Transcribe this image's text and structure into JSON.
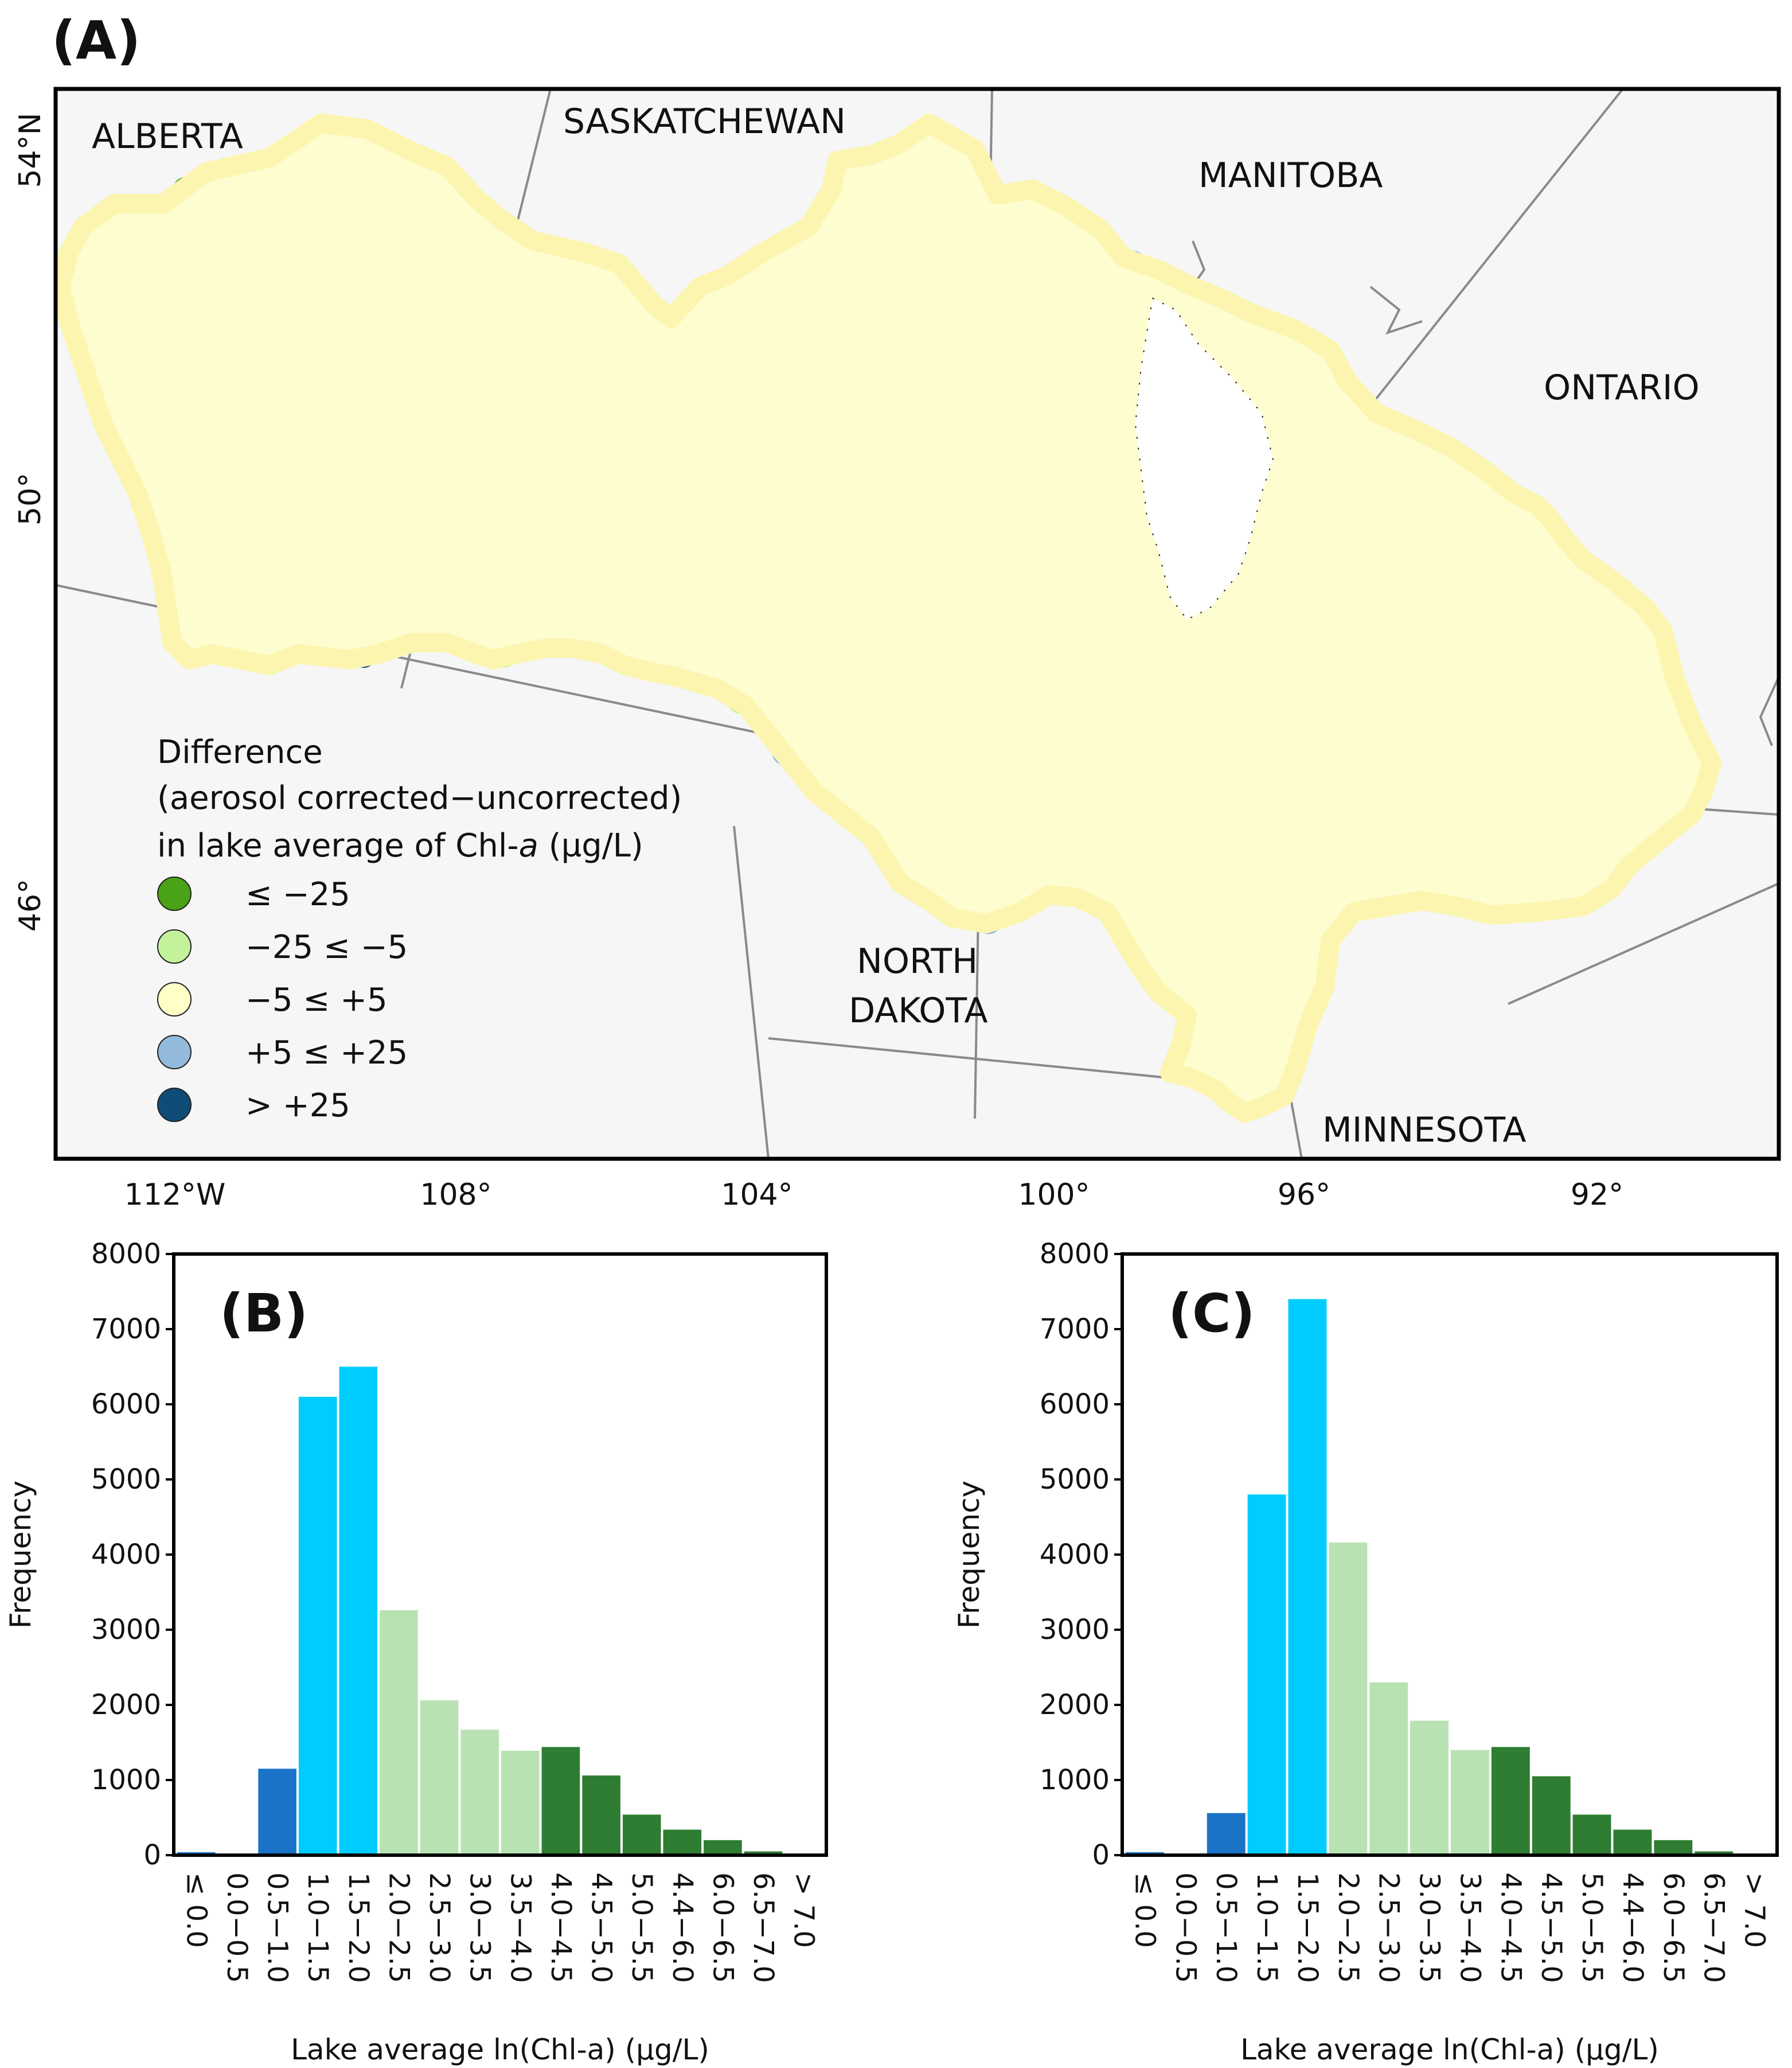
{
  "map": {
    "panel_label": "(A)",
    "regions": [
      "ALBERTA",
      "SASKATCHEWAN",
      "MANITOBA",
      "ONTARIO",
      "NORTH",
      "DAKOTA",
      "MINNESOTA"
    ],
    "lat_labels": [
      "54°N",
      "50°",
      "46°"
    ],
    "lon_labels": [
      "112°W",
      "108°",
      "104°",
      "100°",
      "96°",
      "92°"
    ],
    "legend": {
      "title_lines": [
        "Difference",
        "(aerosol corrected−uncorrected)",
        "in lake average of Chl-",
        "a",
        " (µg/L)"
      ],
      "items": [
        {
          "label": "≤ −25",
          "color": "#4aa316"
        },
        {
          "label": "−25 ≤ −5",
          "color": "#c4f29a"
        },
        {
          "label": "−5 ≤ +5",
          "color": "#ffffc8"
        },
        {
          "label": "+5 ≤ +25",
          "color": "#93b9db"
        },
        {
          "label": "> +25",
          "color": "#0f4d78"
        }
      ]
    }
  },
  "chart_data": [
    {
      "type": "bar",
      "panel_label": "(B)",
      "categories": [
        "≤ 0.0",
        "0.0−0.5",
        "0.5−1.0",
        "1.0−1.5",
        "1.5−2.0",
        "2.0−2.5",
        "2.5−3.0",
        "3.0−3.5",
        "3.5−4.0",
        "4.0−4.5",
        "4.5−5.0",
        "5.0−5.5",
        "4.4−6.0",
        "6.0−6.5",
        "6.5−7.0",
        "> 7.0"
      ],
      "values": [
        40,
        15,
        1150,
        6100,
        6500,
        3260,
        2060,
        1670,
        1390,
        1440,
        1060,
        540,
        340,
        200,
        50,
        10
      ],
      "colors": [
        "#1a73c7",
        "#1a73c7",
        "#1a73c7",
        "#00ccff",
        "#00ccff",
        "#b9e2b3",
        "#b9e2b3",
        "#b9e2b3",
        "#b9e2b3",
        "#2e7d32",
        "#2e7d32",
        "#2e7d32",
        "#2e7d32",
        "#2e7d32",
        "#2e7d32",
        "#2e7d32"
      ],
      "ylabel": "Frequency",
      "xlabel": "Lake average ln(Chl-a) (µg/L)",
      "yticks": [
        "0",
        "1000",
        "2000",
        "3000",
        "4000",
        "5000",
        "6000",
        "7000",
        "8000"
      ],
      "ylim": [
        0,
        8000
      ]
    },
    {
      "type": "bar",
      "panel_label": "(C)",
      "categories": [
        "≤ 0.0",
        "0.0−0.5",
        "0.5−1.0",
        "1.0−1.5",
        "1.5−2.0",
        "2.0−2.5",
        "2.5−3.0",
        "3.0−3.5",
        "3.5−4.0",
        "4.0−4.5",
        "4.5−5.0",
        "5.0−5.5",
        "4.4−6.0",
        "6.0−6.5",
        "6.5−7.0",
        "> 7.0"
      ],
      "values": [
        40,
        15,
        560,
        4800,
        7400,
        4160,
        2300,
        1790,
        1400,
        1440,
        1050,
        540,
        340,
        200,
        50,
        10
      ],
      "colors": [
        "#1a73c7",
        "#1a73c7",
        "#1a73c7",
        "#00ccff",
        "#00ccff",
        "#b9e2b3",
        "#b9e2b3",
        "#b9e2b3",
        "#b9e2b3",
        "#2e7d32",
        "#2e7d32",
        "#2e7d32",
        "#2e7d32",
        "#2e7d32",
        "#2e7d32",
        "#2e7d32"
      ],
      "ylabel": "Frequency",
      "xlabel": "Lake average ln(Chl-a) (µg/L)",
      "yticks": [
        "0",
        "1000",
        "2000",
        "3000",
        "4000",
        "5000",
        "6000",
        "7000",
        "8000"
      ],
      "ylim": [
        0,
        8000
      ]
    }
  ]
}
